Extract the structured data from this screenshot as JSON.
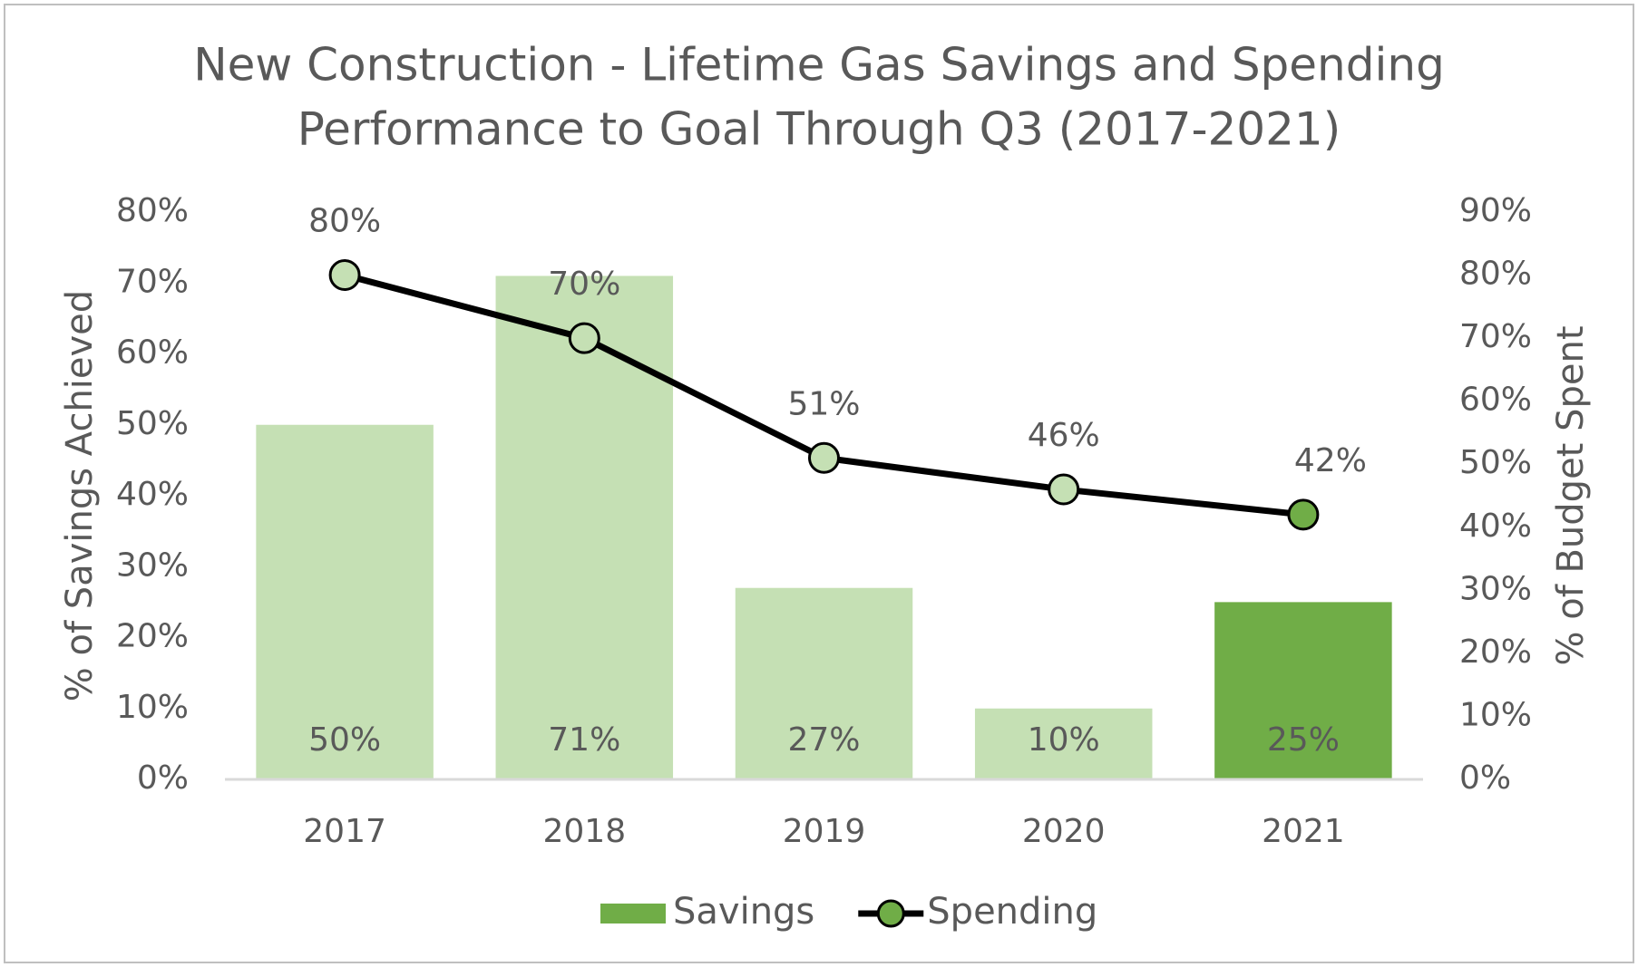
{
  "chart_data": {
    "type": "combo",
    "title": [
      "New Construction - Lifetime Gas Savings and Spending",
      "Performance to Goal Through Q3 (2017-2021)"
    ],
    "ylabel": "% of Savings Achieved",
    "y2label": "% of Budget Spent",
    "categories": [
      "2017",
      "2018",
      "2019",
      "2020",
      "2021"
    ],
    "series": [
      {
        "name": "Savings",
        "type": "bar",
        "color": "#70ad47",
        "colors": [
          "#c5e0b4",
          "#c5e0b4",
          "#c5e0b4",
          "#c5e0b4",
          "#70ad47"
        ],
        "values": [
          50,
          71,
          27,
          10,
          25
        ],
        "value_labels": [
          "50%",
          "71%",
          "27%",
          "10%",
          "25%"
        ]
      },
      {
        "name": "Spending",
        "type": "line",
        "axis": "y2",
        "color": "#000000",
        "marker_color": "#70ad47",
        "marker_colors": [
          "#c5e0b4",
          "#c5e0b4",
          "#c5e0b4",
          "#c5e0b4",
          "#70ad47"
        ],
        "values": [
          80,
          70,
          51,
          46,
          42
        ],
        "value_labels": [
          "80%",
          "70%",
          "51%",
          "46%",
          "42%"
        ]
      }
    ],
    "ylim": [
      0,
      80
    ],
    "yticks": [
      {
        "value": 0,
        "label": "0%"
      },
      {
        "value": 10,
        "label": "10%"
      },
      {
        "value": 20,
        "label": "20%"
      },
      {
        "value": 30,
        "label": "30%"
      },
      {
        "value": 40,
        "label": "40%"
      },
      {
        "value": 50,
        "label": "50%"
      },
      {
        "value": 60,
        "label": "60%"
      },
      {
        "value": 70,
        "label": "70%"
      },
      {
        "value": 80,
        "label": "80%"
      }
    ],
    "y2lim": [
      0,
      90
    ],
    "y2ticks": [
      {
        "value": 0,
        "label": "0%"
      },
      {
        "value": 10,
        "label": "10%"
      },
      {
        "value": 20,
        "label": "20%"
      },
      {
        "value": 30,
        "label": "30%"
      },
      {
        "value": 40,
        "label": "40%"
      },
      {
        "value": 50,
        "label": "50%"
      },
      {
        "value": 60,
        "label": "60%"
      },
      {
        "value": 70,
        "label": "70%"
      },
      {
        "value": 80,
        "label": "80%"
      },
      {
        "value": 90,
        "label": "90%"
      }
    ],
    "grid": false,
    "legend": "bottom"
  }
}
